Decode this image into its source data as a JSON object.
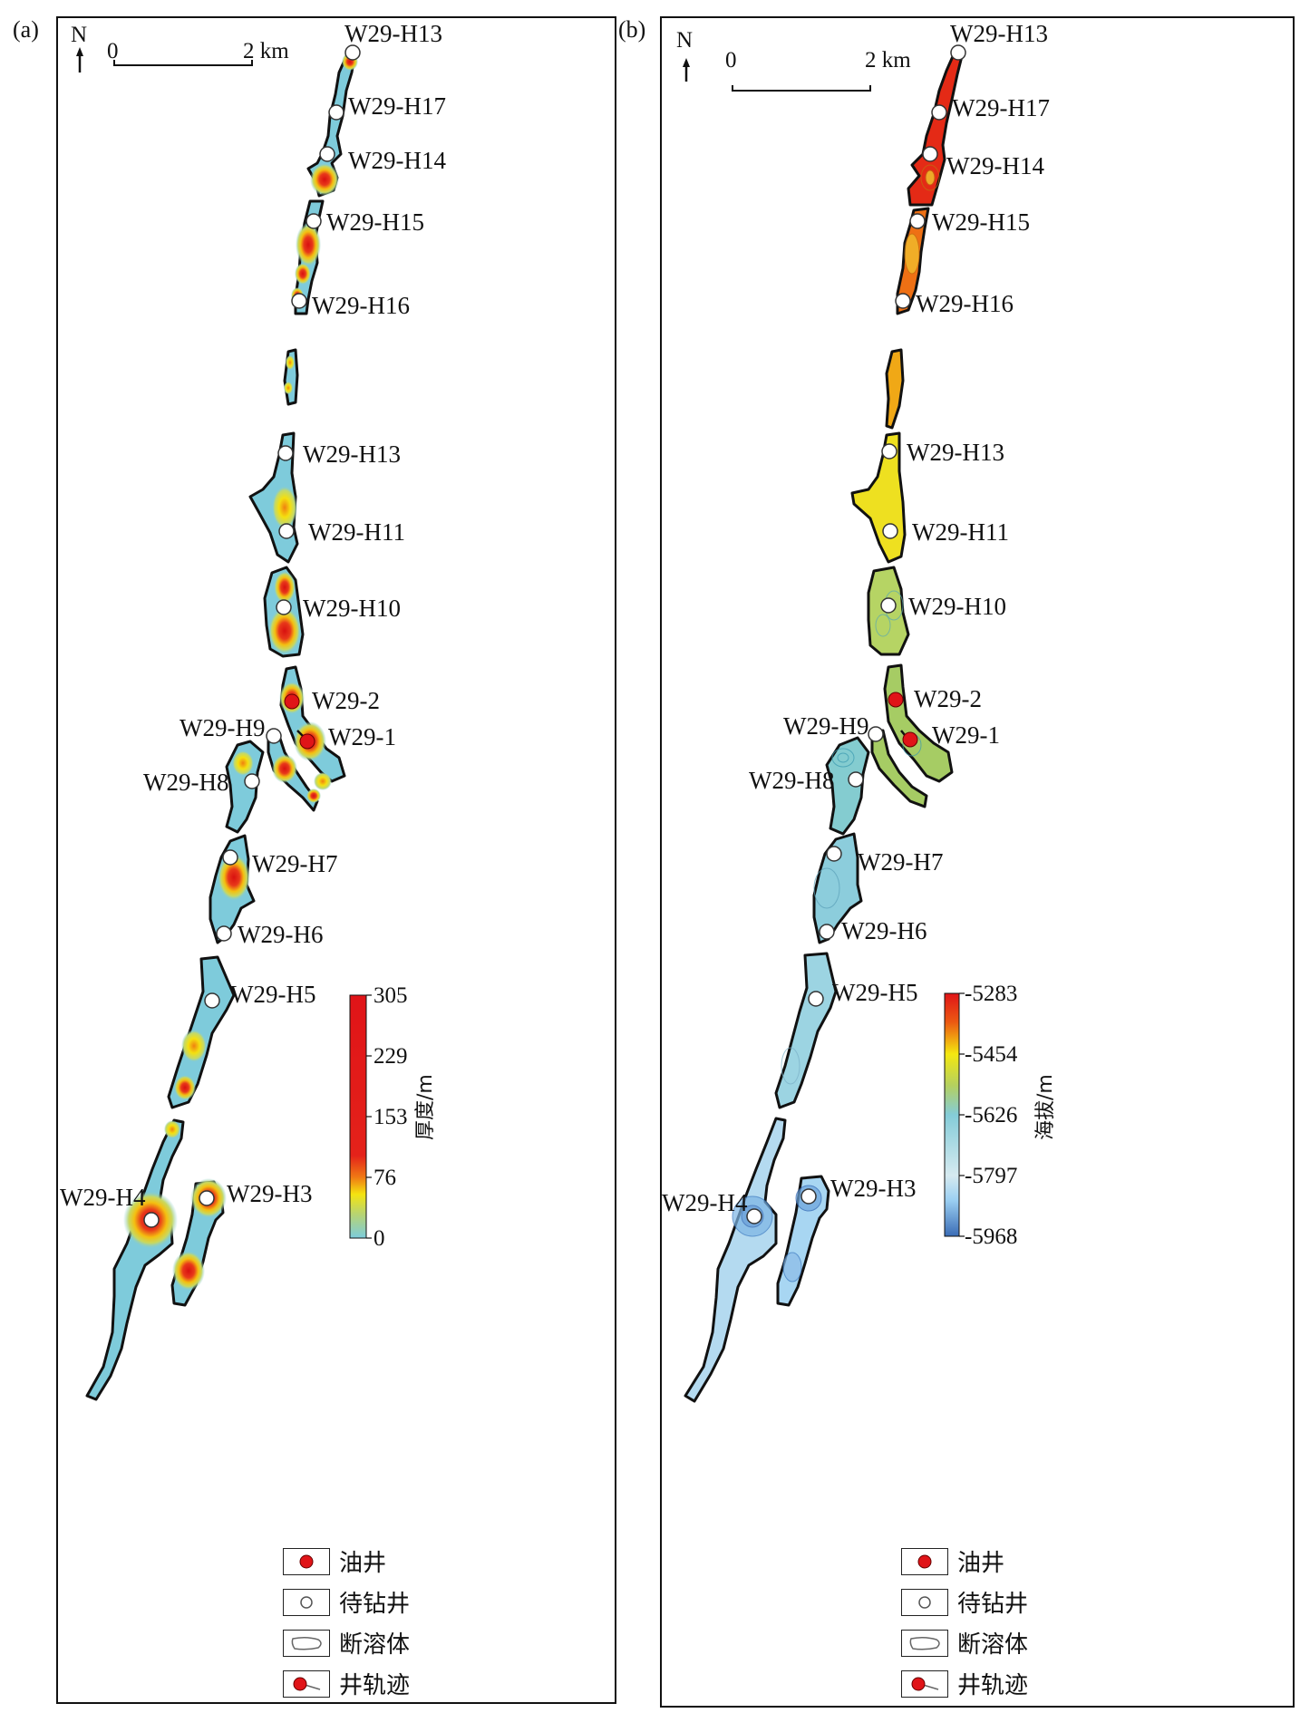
{
  "panels": [
    {
      "id": "a",
      "label": "(a)",
      "north": "N",
      "scale": {
        "start": "0",
        "end": "2 km"
      },
      "colorbar": {
        "title": "厚度/m",
        "ticks": [
          "305",
          "229",
          "153",
          "76",
          "0"
        ],
        "colors": [
          "#e01418",
          "#e4201a",
          "#e8261c",
          "#f07a14",
          "#f4e410",
          "#a8d080",
          "#7cccdc"
        ]
      },
      "wells": {
        "h13_top": "W29-H13",
        "h17": "W29-H17",
        "h14": "W29-H14",
        "h15": "W29-H15",
        "h16": "W29-H16",
        "h13": "W29-H13",
        "h11": "W29-H11",
        "h10": "W29-H10",
        "w2": "W29-2",
        "w1": "W29-1",
        "h9": "W29-H9",
        "h8": "W29-H8",
        "h7": "W29-H7",
        "h6": "W29-H6",
        "h5": "W29-H5",
        "h4": "W29-H4",
        "h3": "W29-H3"
      },
      "fill_color": "#7ecbdb"
    },
    {
      "id": "b",
      "label": "(b)",
      "north": "N",
      "scale": {
        "start": "0",
        "end": "2 km"
      },
      "colorbar": {
        "title": "海拔/m",
        "ticks": [
          "-5283",
          "-5454",
          "-5626",
          "-5797",
          "-5968"
        ],
        "colors": [
          "#e01418",
          "#f08a10",
          "#f4e810",
          "#a8d070",
          "#84ccd8",
          "#cfe8ee",
          "#8ec8ee",
          "#3a6fb8"
        ]
      },
      "wells": {
        "h13_top": "W29-H13",
        "h17": "W29-H17",
        "h14": "W29-H14",
        "h15": "W29-H15",
        "h16": "W29-H16",
        "h13": "W29-H13",
        "h11": "W29-H11",
        "h10": "W29-H10",
        "w2": "W29-2",
        "w1": "W29-1",
        "h9": "W29-H9",
        "h8": "W29-H8",
        "h7": "W29-H7",
        "h6": "W29-H6",
        "h5": "W29-H5",
        "h4": "W29-H4",
        "h3": "W29-H3"
      }
    }
  ],
  "legend": {
    "oil_well": "油井",
    "planned_well": "待钻井",
    "fault_karst": "断溶体",
    "well_trajectory": "井轨迹"
  },
  "colors": {
    "oil_well": "#e01418",
    "outline": "#111111"
  }
}
